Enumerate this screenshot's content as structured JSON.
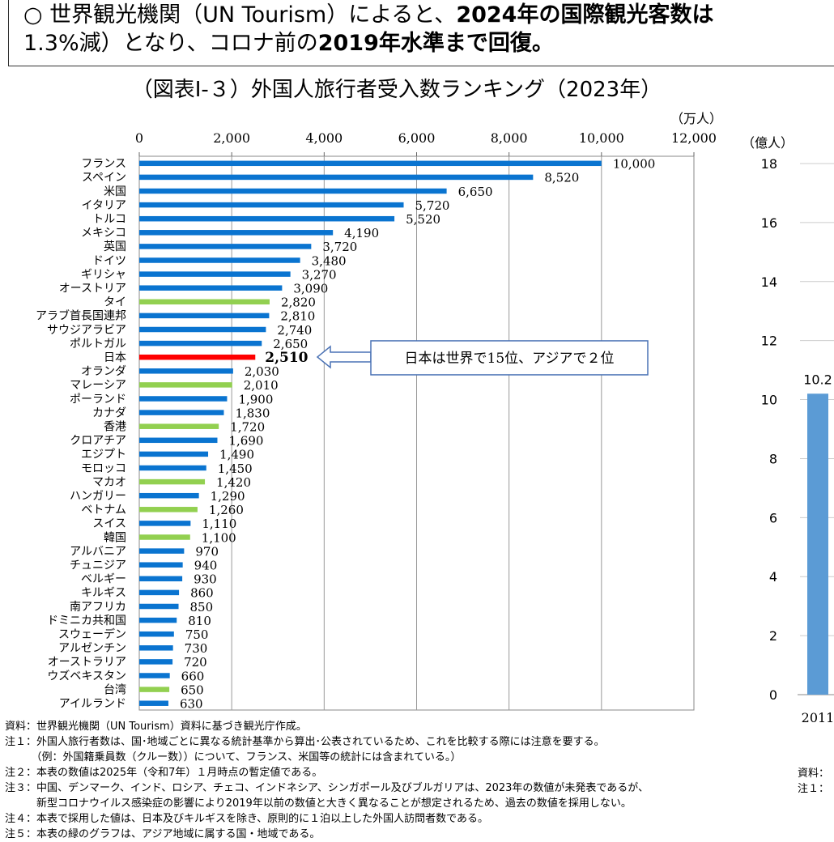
{
  "header": {
    "line1_normal": "○ 世界観光機関（UN Tourism）によると、",
    "line1_bold": "2024年の国際観光客数は",
    "line2_normal1": "1.3%減）となり、コロナ前の",
    "line2_bold": "2019年水準まで回復。"
  },
  "chart_data": [
    {
      "type": "bar",
      "orientation": "horizontal",
      "title": "（図表Ⅰ-３）外国人旅行者受入数ランキング（2023年）",
      "unit": "（万人）",
      "xlim": [
        0,
        12000
      ],
      "ticks": [
        "0",
        "2,000",
        "4,000",
        "6,000",
        "8,000",
        "10,000",
        "12,000"
      ],
      "grid": true,
      "colors": {
        "default": "#0A74D0",
        "asia": "#92D050",
        "japan": "#FF0000"
      },
      "categories": [
        "フランス",
        "スペイン",
        "米国",
        "イタリア",
        "トルコ",
        "メキシコ",
        "英国",
        "ドイツ",
        "ギリシャ",
        "オーストリア",
        "タイ",
        "アラブ首長国連邦",
        "サウジアラビア",
        "ポルトガル",
        "日本",
        "オランダ",
        "マレーシア",
        "ポーランド",
        "カナダ",
        "香港",
        "クロアチア",
        "エジプト",
        "モロッコ",
        "マカオ",
        "ハンガリー",
        "ベトナム",
        "スイス",
        "韓国",
        "アルバニア",
        "チュニジア",
        "ベルギー",
        "キルギス",
        "南アフリカ",
        "ドミニカ共和国",
        "スウェーデン",
        "アルゼンチン",
        "オーストラリア",
        "ウズベキスタン",
        "台湾",
        "アイルランド"
      ],
      "values": [
        10000,
        8520,
        6650,
        5720,
        5520,
        4190,
        3720,
        3480,
        3270,
        3090,
        2820,
        2810,
        2740,
        2650,
        2510,
        2030,
        2010,
        1900,
        1830,
        1720,
        1690,
        1490,
        1450,
        1420,
        1290,
        1260,
        1110,
        1100,
        970,
        940,
        930,
        860,
        850,
        810,
        750,
        730,
        720,
        660,
        650,
        630
      ],
      "labels": [
        "10,000",
        "8,520",
        "6,650",
        "5,720",
        "5,520",
        "4,190",
        "3,720",
        "3,480",
        "3,270",
        "3,090",
        "2,820",
        "2,810",
        "2,740",
        "2,650",
        "2,510",
        "2,030",
        "2,010",
        "1,900",
        "1,830",
        "1,720",
        "1,690",
        "1,490",
        "1,450",
        "1,420",
        "1,290",
        "1,260",
        "1,110",
        "1,100",
        "970",
        "940",
        "930",
        "860",
        "850",
        "810",
        "750",
        "730",
        "720",
        "660",
        "650",
        "630"
      ],
      "group": [
        "d",
        "d",
        "d",
        "d",
        "d",
        "d",
        "d",
        "d",
        "d",
        "d",
        "asia",
        "d",
        "d",
        "d",
        "japan",
        "d",
        "asia",
        "d",
        "d",
        "asia",
        "d",
        "d",
        "d",
        "asia",
        "d",
        "asia",
        "d",
        "asia",
        "d",
        "d",
        "d",
        "d",
        "d",
        "d",
        "d",
        "d",
        "d",
        "d",
        "asia",
        "d"
      ],
      "annotation": "日本は世界で15位、アジアで２位"
    },
    {
      "type": "bar",
      "unit": "（億人）",
      "ylim": [
        0,
        18
      ],
      "ticks": [
        "0",
        "2",
        "4",
        "6",
        "8",
        "10",
        "12",
        "14",
        "16",
        "18"
      ],
      "categories": [
        "2011"
      ],
      "values": [
        10.2
      ],
      "labels": [
        "10.2"
      ],
      "color": "#5B9BD5"
    }
  ],
  "notes": [
    "資料：世界観光機関（UN Tourism）資料に基づき観光庁作成。",
    "注１：外国人旅行者数は、国･地域ごとに異なる統計基準から算出･公表されているため、これを比較する際には注意を要する。",
    "　　　（例：外国籍乗員数（クルー数））について、フランス、米国等の統計には含まれている。）",
    "注２：本表の数値は2025年（令和7年）１月時点の暫定値である。",
    "注３：中国、デンマーク、インド、ロシア、チェコ、インドネシア、シンガポール及びブルガリアは、2023年の数値が未発表であるが、",
    "　　　新型コロナウイルス感染症の影響により2019年以前の数値と大きく異なることが想定されるため、過去の数値を採用しない。",
    "注４：本表で採用した値は、日本及びキルギスを除き、原則的に１泊以上した外国人訪問者数である。",
    "注５：本表の緑のグラフは、アジア地域に属する国・地域である。"
  ],
  "right_notes": [
    "資料：",
    "注１："
  ]
}
